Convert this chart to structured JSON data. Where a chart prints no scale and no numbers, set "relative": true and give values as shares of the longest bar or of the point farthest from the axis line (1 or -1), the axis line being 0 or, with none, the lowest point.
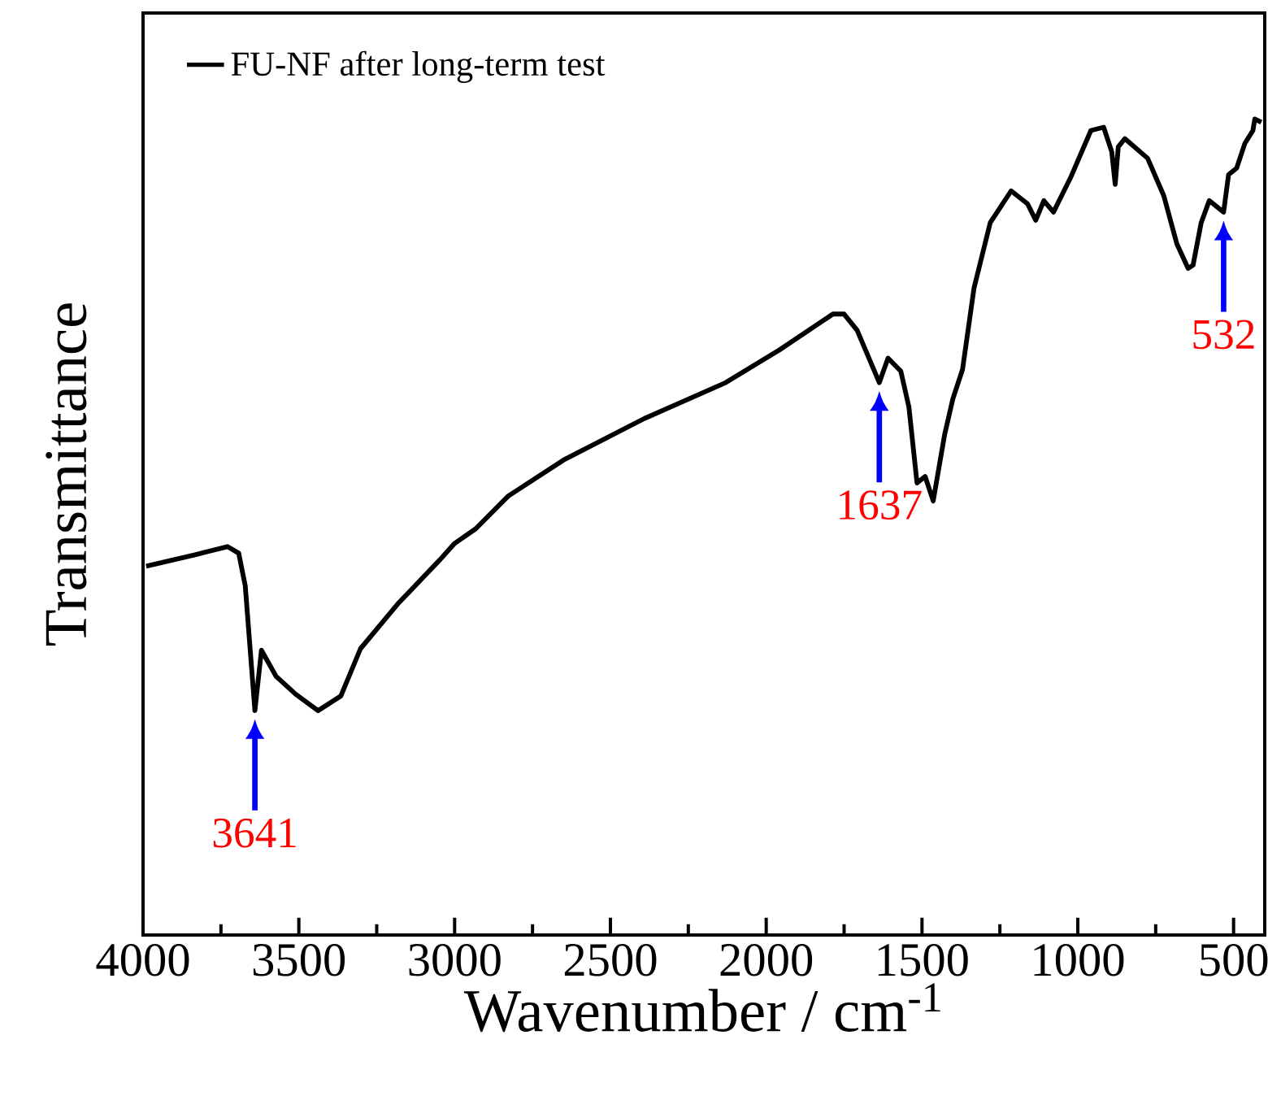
{
  "chart_data": {
    "type": "line",
    "relative": true,
    "xlabel": "Wavenumber / cm$^{-1}$",
    "ylabel": "Transmittance",
    "xlim": [
      4000,
      400
    ],
    "xticks": [
      4000,
      3500,
      3000,
      2500,
      2000,
      1500,
      1000,
      500
    ],
    "tick_labels": "x",
    "legend": "top left",
    "marker": "none",
    "line_style": "solid",
    "x": [
      3990,
      3833,
      3729,
      3693,
      3672,
      3656,
      3641,
      3620,
      3573,
      3510,
      3438,
      3365,
      3302,
      3182,
      3047,
      3000,
      2932,
      2828,
      2651,
      2391,
      2130,
      1958,
      1786,
      1750,
      1708,
      1637,
      1609,
      1568,
      1542,
      1516,
      1490,
      1464,
      1427,
      1401,
      1370,
      1333,
      1281,
      1214,
      1161,
      1135,
      1109,
      1078,
      1021,
      958,
      917,
      891,
      880,
      870,
      849,
      776,
      724,
      682,
      646,
      630,
      604,
      578,
      532,
      516,
      490,
      464,
      438,
      432,
      411
    ],
    "series": [
      {
        "name": "FU-NF after long-term test",
        "color": "#000000",
        "values": [
          0.452,
          0.466,
          0.476,
          0.468,
          0.428,
          0.349,
          0.275,
          0.349,
          0.317,
          0.295,
          0.275,
          0.293,
          0.351,
          0.406,
          0.46,
          0.48,
          0.498,
          0.538,
          0.582,
          0.633,
          0.677,
          0.717,
          0.761,
          0.761,
          0.741,
          0.677,
          0.707,
          0.691,
          0.647,
          0.554,
          0.562,
          0.532,
          0.614,
          0.657,
          0.693,
          0.793,
          0.873,
          0.912,
          0.896,
          0.876,
          0.9,
          0.886,
          0.93,
          0.986,
          0.99,
          0.96,
          0.92,
          0.966,
          0.976,
          0.952,
          0.906,
          0.847,
          0.817,
          0.821,
          0.873,
          0.9,
          0.886,
          0.932,
          0.94,
          0.97,
          0.986,
          1.0,
          0.996
        ]
      }
    ],
    "annotations": [
      {
        "text": "3641",
        "x": 3641,
        "y": 0.275
      },
      {
        "text": "1637",
        "x": 1637,
        "y": 0.677
      },
      {
        "text": "532",
        "x": 532,
        "y": 0.886
      }
    ]
  }
}
